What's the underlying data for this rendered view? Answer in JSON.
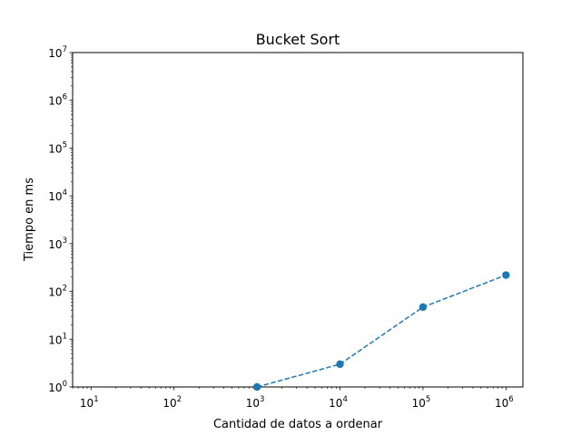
{
  "chart_data": {
    "type": "line",
    "title": "Bucket Sort",
    "xlabel": "Cantidad de datos a ordenar",
    "ylabel": "Tiempo en ms",
    "x_scale": "log",
    "y_scale": "log",
    "xlim": [
      6,
      1600000
    ],
    "ylim": [
      1,
      10000000
    ],
    "grid": false,
    "legend": "none",
    "x_ticks": [
      {
        "value": 10,
        "base": "10",
        "exp": "1"
      },
      {
        "value": 100,
        "base": "10",
        "exp": "2"
      },
      {
        "value": 1000,
        "base": "10",
        "exp": "3"
      },
      {
        "value": 10000,
        "base": "10",
        "exp": "4"
      },
      {
        "value": 100000,
        "base": "10",
        "exp": "5"
      },
      {
        "value": 1000000,
        "base": "10",
        "exp": "6"
      }
    ],
    "y_ticks": [
      {
        "value": 1,
        "base": "10",
        "exp": "0"
      },
      {
        "value": 10,
        "base": "10",
        "exp": "1"
      },
      {
        "value": 100,
        "base": "10",
        "exp": "2"
      },
      {
        "value": 1000,
        "base": "10",
        "exp": "3"
      },
      {
        "value": 10000,
        "base": "10",
        "exp": "4"
      },
      {
        "value": 100000,
        "base": "10",
        "exp": "5"
      },
      {
        "value": 1000000,
        "base": "10",
        "exp": "6"
      },
      {
        "value": 10000000,
        "base": "10",
        "exp": "7"
      }
    ],
    "series": [
      {
        "color": "#1f77b4",
        "line_style": "dashed",
        "marker": "circle",
        "x": [
          1000,
          10000,
          100000,
          1000000
        ],
        "y": [
          1,
          3,
          47,
          220
        ]
      }
    ]
  }
}
